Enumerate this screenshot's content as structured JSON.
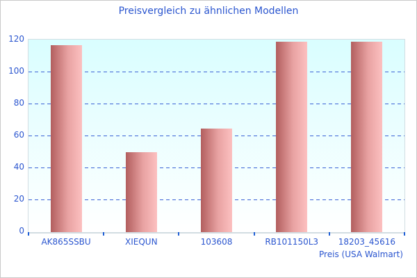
{
  "chart_data": {
    "type": "bar",
    "title": "Preisvergleich zu ähnlichen Modellen",
    "xlabel": "Preis (USA Walmart)",
    "ylabel": "",
    "categories": [
      "AK865SSBU",
      "XIEQUN",
      "103608",
      "RB101150L3",
      "18203_45616"
    ],
    "values": [
      117,
      50,
      65,
      119,
      119
    ],
    "ylim": [
      0,
      120
    ],
    "ytick_interval": 20,
    "grid": true,
    "legend_position": "none",
    "colors": {
      "text": "#2a55cf",
      "gridline": "#3a62d5",
      "tick": "#1f5fd6",
      "bar_gradient_left": "#b25e5e",
      "bar_gradient_mid": "#e8a2a2",
      "bar_gradient_right": "#fcc0c0",
      "plot_bg_top": "#d9feff",
      "plot_bg_bottom": "#ffffff",
      "plot_border": "#d2dde2",
      "outer_border": "#c9c9c9"
    }
  }
}
